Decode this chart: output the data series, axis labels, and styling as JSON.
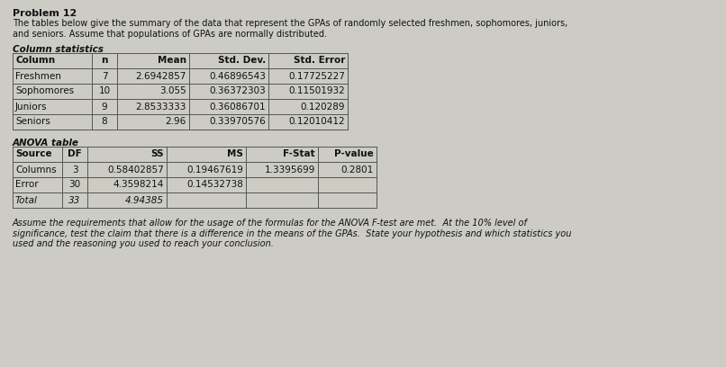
{
  "title": "Problem 12",
  "intro_text": "The tables below give the summary of the data that represent the GPAs of randomly selected freshmen, sophomores, juniors,\nand seniors. Assume that populations of GPAs are normally distributed.",
  "col_stats_title": "Column statistics",
  "col_headers": [
    "Column",
    "n",
    "Mean",
    "Std. Dev.",
    "Std. Error"
  ],
  "col_align": [
    "left",
    "center",
    "right",
    "right",
    "right"
  ],
  "col_rows": [
    [
      "Freshmen",
      "7",
      "2.6942857",
      "0.46896543",
      "0.17725227"
    ],
    [
      "Sophomores",
      "10",
      "3.055",
      "0.36372303",
      "0.11501932"
    ],
    [
      "Juniors",
      "9",
      "2.8533333",
      "0.36086701",
      "0.120289"
    ],
    [
      "Seniors",
      "8",
      "2.96",
      "0.33970576",
      "0.12010412"
    ]
  ],
  "anova_title": "ANOVA table",
  "anova_headers": [
    "Source",
    "DF",
    "SS",
    "MS",
    "F-Stat",
    "P-value"
  ],
  "anova_align": [
    "left",
    "center",
    "right",
    "right",
    "right",
    "right"
  ],
  "anova_rows": [
    [
      "Columns",
      "3",
      "0.58402857",
      "0.19467619",
      "1.3395699",
      "0.2801"
    ],
    [
      "Error",
      "30",
      "4.3598214",
      "0.14532738",
      "",
      ""
    ],
    [
      "Total",
      "33",
      "4.94385",
      "",
      "",
      ""
    ]
  ],
  "footer_text": "Assume the requirements that allow for the usage of the formulas for the ANOVA F-test are met.  At the 10% level of\nsignificance, test the claim that there is a difference in the means of the GPAs.  State your hypothesis and which statistics you\nused and the reasoning you used to reach your conclusion.",
  "bg_color": "#ccccc4",
  "text_color": "#111111",
  "line_color": "#555555",
  "font_size": 7.5,
  "title_font_size": 8.0,
  "header_font_size": 7.5
}
